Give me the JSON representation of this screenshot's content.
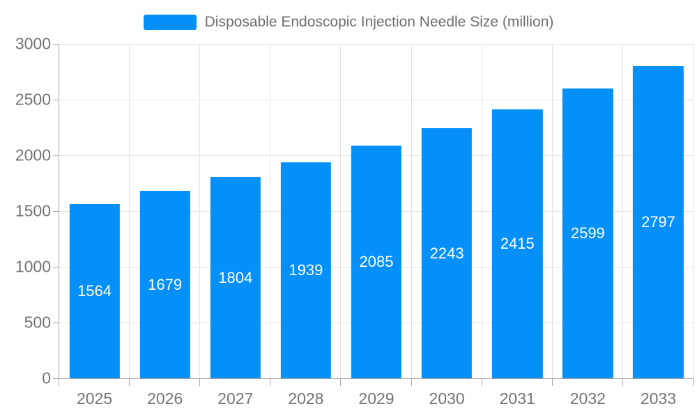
{
  "legend": {
    "label": "Disposable Endoscopic Injection Needle Size (million)"
  },
  "chart_data": {
    "type": "bar",
    "title": "Disposable Endoscopic Injection Needle Size (million)",
    "categories": [
      "2025",
      "2026",
      "2027",
      "2028",
      "2029",
      "2030",
      "2031",
      "2032",
      "2033"
    ],
    "values": [
      1564,
      1679,
      1804,
      1939,
      2085,
      2243,
      2415,
      2599,
      2797
    ],
    "xlabel": "",
    "ylabel": "",
    "ylim": [
      0,
      3000
    ],
    "yticks": [
      0,
      500,
      1000,
      1500,
      2000,
      2500,
      3000
    ],
    "grid": true,
    "legend_position": "top-center",
    "bar_label_position": "inside-center",
    "colors": {
      "bar": "#0590f9",
      "bar_label": "#ffffff",
      "gridline": "#e2e2e2",
      "axis": "#a8a8a8",
      "tick_label": "#737373",
      "title": "#6e6e6e"
    }
  }
}
